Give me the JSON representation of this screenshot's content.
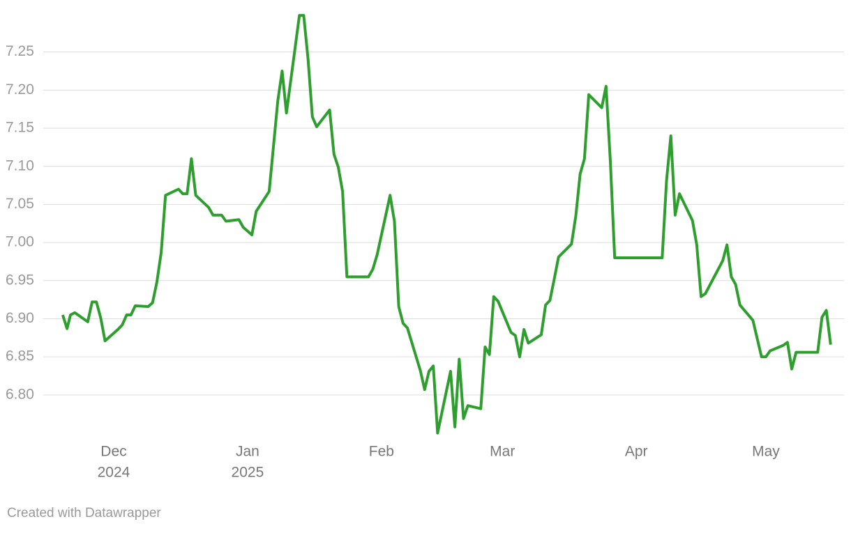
{
  "chart_data": {
    "type": "line",
    "x": [
      -11.8,
      -10.8,
      -10,
      -9,
      -6,
      -5,
      -4,
      -3,
      -2,
      1,
      2,
      3,
      4,
      5,
      8,
      9,
      10,
      11,
      12,
      15,
      16,
      17,
      18,
      19,
      22,
      23,
      25,
      26,
      29,
      30,
      32,
      33,
      36,
      38,
      39,
      40,
      43,
      44,
      45,
      46,
      47,
      50,
      51,
      52,
      53,
      54,
      59,
      60,
      61,
      64,
      65,
      66,
      67,
      68,
      71,
      72,
      73,
      74,
      75,
      78,
      79,
      80,
      81,
      82,
      85,
      86,
      87,
      88,
      89,
      92,
      93,
      94,
      95,
      96,
      99,
      100,
      101,
      102,
      103,
      106,
      107,
      108,
      109,
      110,
      113,
      114,
      115,
      116,
      127,
      128,
      129,
      130,
      131,
      134,
      135,
      136,
      137,
      141,
      142,
      143,
      144,
      145,
      148,
      150,
      151,
      152,
      155,
      156,
      157,
      158,
      163,
      164,
      165,
      166
    ],
    "series": [
      {
        "color": "#2e9e2e",
        "values": [
          6.905,
          6.887,
          6.905,
          6.908,
          6.896,
          6.922,
          6.922,
          6.901,
          6.871,
          6.886,
          6.892,
          6.905,
          6.905,
          6.917,
          6.916,
          6.921,
          6.948,
          6.987,
          7.062,
          7.07,
          7.064,
          7.064,
          7.11,
          7.062,
          7.046,
          7.036,
          7.036,
          7.028,
          7.03,
          7.02,
          7.01,
          7.041,
          7.067,
          7.186,
          7.225,
          7.17,
          7.298,
          7.298,
          7.241,
          7.165,
          7.152,
          7.174,
          7.116,
          7.099,
          7.067,
          6.955,
          6.955,
          6.965,
          6.984,
          7.062,
          7.028,
          6.916,
          6.894,
          6.888,
          6.832,
          6.807,
          6.831,
          6.838,
          6.75,
          6.831,
          6.758,
          6.847,
          6.769,
          6.786,
          6.782,
          6.863,
          6.853,
          6.929,
          6.923,
          6.882,
          6.878,
          6.85,
          6.886,
          6.868,
          6.879,
          6.918,
          6.924,
          6.952,
          6.981,
          6.998,
          7.035,
          7.09,
          7.11,
          7.194,
          7.177,
          7.205,
          7.106,
          6.98,
          6.98,
          7.081,
          7.14,
          7.036,
          7.064,
          7.029,
          6.997,
          6.929,
          6.933,
          6.976,
          6.997,
          6.955,
          6.945,
          6.918,
          6.898,
          6.85,
          6.85,
          6.858,
          6.865,
          6.869,
          6.834,
          6.856,
          6.856,
          6.902,
          6.911,
          6.866
        ]
      }
    ],
    "xlim": [
      -13.4,
      169.1
    ],
    "xticks": [
      {
        "value": 0,
        "label": [
          "Dec",
          "2024"
        ]
      },
      {
        "value": 31,
        "label": [
          "Jan",
          "2025"
        ]
      },
      {
        "value": 62,
        "label": "Feb"
      },
      {
        "value": 90,
        "label": "Mar"
      },
      {
        "value": 121,
        "label": "Apr"
      },
      {
        "value": 151,
        "label": "May"
      }
    ],
    "ylim": [
      6.745,
      7.3
    ],
    "yticks": [
      {
        "value": 6.8,
        "label": "6.80"
      },
      {
        "value": 6.85,
        "label": "6.85"
      },
      {
        "value": 6.9,
        "label": "6.90"
      },
      {
        "value": 6.95,
        "label": "6.95"
      },
      {
        "value": 7.0,
        "label": "7.00"
      },
      {
        "value": 7.05,
        "label": "7.05"
      },
      {
        "value": 7.1,
        "label": "7.10"
      },
      {
        "value": 7.15,
        "label": "7.15"
      },
      {
        "value": 7.2,
        "label": "7.20"
      },
      {
        "value": 7.25,
        "label": "7.25"
      }
    ],
    "grid": true,
    "footer": "Created with Datawrapper"
  }
}
